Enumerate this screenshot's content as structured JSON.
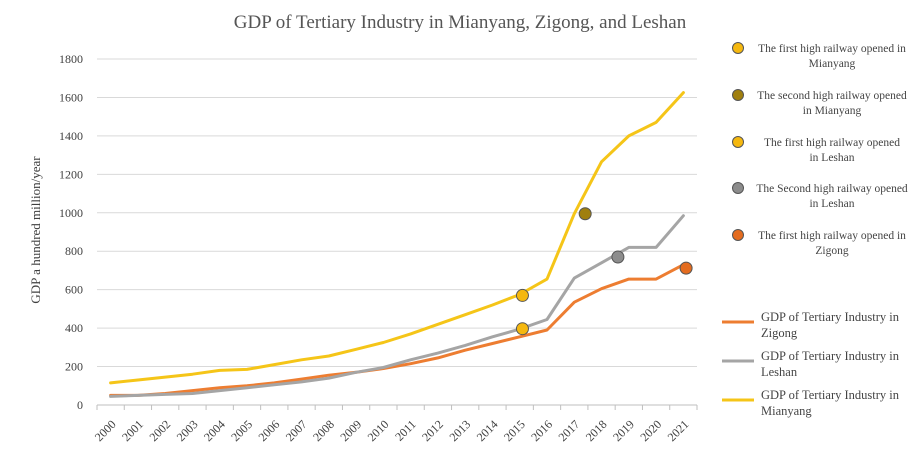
{
  "chart_data": {
    "type": "line",
    "title": "GDP of Tertiary Industry in Mianyang, Zigong, and Leshan",
    "xlabel": "",
    "ylabel": "GDP a hundred million/year",
    "ylim": [
      0,
      1800
    ],
    "yticks": [
      0,
      200,
      400,
      600,
      800,
      1000,
      1200,
      1400,
      1600,
      1800
    ],
    "categories": [
      "2000",
      "2001",
      "2002",
      "2003",
      "2004",
      "2005",
      "2006",
      "2007",
      "2008",
      "2009",
      "2010",
      "2011",
      "2012",
      "2013",
      "2014",
      "2015",
      "2016",
      "2017",
      "2018",
      "2019",
      "2020",
      "2021"
    ],
    "grid": true,
    "series": [
      {
        "name": "GDP of Tertiary Industry in Zigong",
        "color": "#ED7D31",
        "values": [
          50,
          50,
          60,
          75,
          90,
          100,
          115,
          135,
          155,
          170,
          190,
          215,
          245,
          285,
          320,
          355,
          390,
          535,
          605,
          655,
          655,
          730
        ]
      },
      {
        "name": "GDP of Tertiary Industry in Leshan",
        "color": "#A5A5A5",
        "values": [
          45,
          50,
          55,
          60,
          75,
          90,
          105,
          120,
          140,
          170,
          195,
          235,
          270,
          310,
          355,
          395,
          445,
          660,
          740,
          820,
          820,
          985
        ]
      },
      {
        "name": "GDP of Tertiary Industry in Mianyang",
        "color": "#F5C518",
        "values": [
          115,
          130,
          145,
          160,
          180,
          185,
          210,
          235,
          255,
          290,
          325,
          370,
          420,
          470,
          520,
          575,
          655,
          995,
          1265,
          1400,
          1470,
          1625
        ]
      }
    ],
    "markers": [
      {
        "label": "The first high railway opened in Mianyang",
        "x": 15.1,
        "y": 570,
        "color": "#F5B80F"
      },
      {
        "label": "The second high railway opened in Mianyang",
        "x": 17.4,
        "y": 995,
        "color": "#A07F0E"
      },
      {
        "label": "The first high railway opened in Leshan",
        "x": 15.1,
        "y": 397,
        "color": "#F5B80F"
      },
      {
        "label": "The Second high railway opened in Leshan",
        "x": 18.6,
        "y": 770,
        "color": "#8C8C8C"
      },
      {
        "label": "The first high railway opened in Zigong",
        "x": 21.1,
        "y": 712,
        "color": "#E46C1F"
      }
    ],
    "marker_legend": [
      {
        "line1": "The first high railway opened in",
        "line2": "Mianyang",
        "color": "#F5B80F"
      },
      {
        "line1": "The second high railway opened",
        "line2": "in Mianyang",
        "color": "#A07F0E"
      },
      {
        "line1": "The first high railway opened",
        "line2": "in Leshan",
        "color": "#F5B80F"
      },
      {
        "line1": "The Second high railway opened",
        "line2": "in Leshan",
        "color": "#8C8C8C"
      },
      {
        "line1": "The first high railway opened in",
        "line2": "Zigong",
        "color": "#E46C1F"
      }
    ],
    "line_legend": [
      {
        "line1": "GDP of Tertiary Industry in",
        "line2": "Zigong",
        "color": "#ED7D31"
      },
      {
        "line1": "GDP of Tertiary Industry in",
        "line2": "Leshan",
        "color": "#A5A5A5"
      },
      {
        "line1": "GDP of Tertiary Industry in",
        "line2": "Mianyang",
        "color": "#F5C518"
      }
    ]
  }
}
